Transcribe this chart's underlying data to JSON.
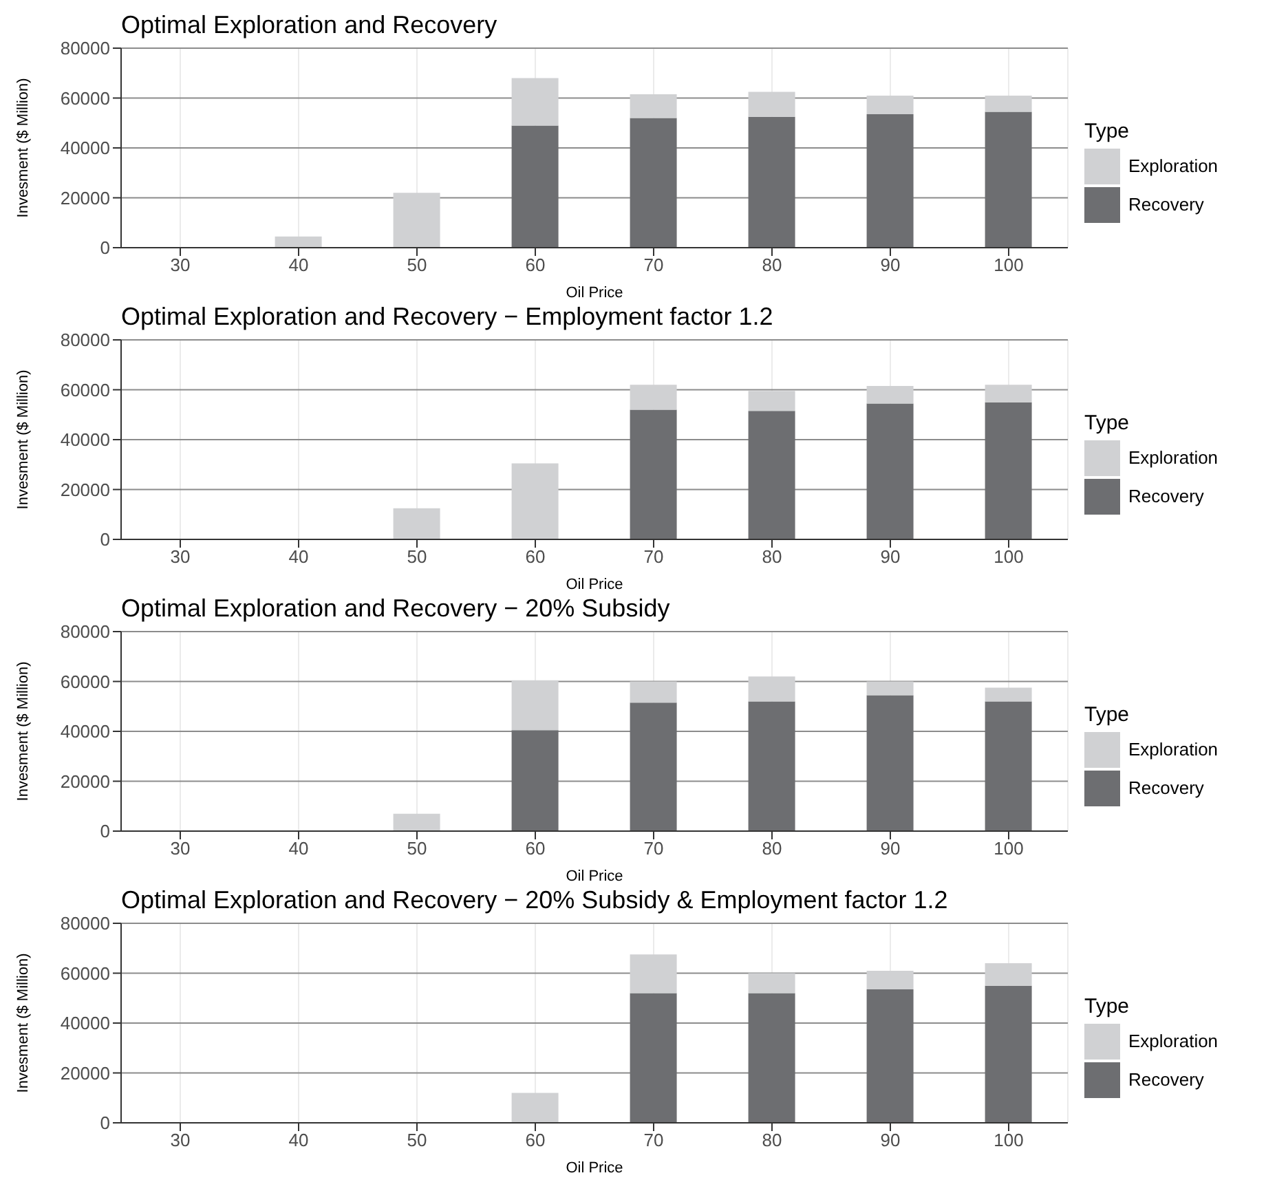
{
  "chart_data": [
    {
      "type": "bar",
      "title": "Optimal Exploration and Recovery",
      "xlabel": "Oil Price",
      "ylabel": "Invesment ($ Million)",
      "legend_title": "Type",
      "categories": [
        "30",
        "40",
        "50",
        "60",
        "70",
        "80",
        "90",
        "100"
      ],
      "stacked": true,
      "series": [
        {
          "name": "Recovery",
          "color": "#6d6e71",
          "values": [
            0,
            0,
            0,
            49000,
            52000,
            52500,
            53500,
            54500
          ]
        },
        {
          "name": "Exploration",
          "color": "#d0d1d3",
          "values": [
            0,
            4500,
            22000,
            19000,
            9500,
            10000,
            7500,
            6500
          ]
        }
      ],
      "ylim": [
        0,
        80000
      ],
      "yticks": [
        0,
        20000,
        40000,
        60000,
        80000
      ],
      "grid": true,
      "legend": "right"
    },
    {
      "type": "bar",
      "title": "Optimal Exploration and Recovery − Employment factor 1.2",
      "xlabel": "Oil Price",
      "ylabel": "Invesment ($ Million)",
      "legend_title": "Type",
      "categories": [
        "30",
        "40",
        "50",
        "60",
        "70",
        "80",
        "90",
        "100"
      ],
      "stacked": true,
      "series": [
        {
          "name": "Recovery",
          "color": "#6d6e71",
          "values": [
            0,
            0,
            0,
            0,
            52000,
            51500,
            54500,
            55000
          ]
        },
        {
          "name": "Exploration",
          "color": "#d0d1d3",
          "values": [
            0,
            0,
            12500,
            30500,
            10000,
            8000,
            7000,
            7000
          ]
        }
      ],
      "ylim": [
        0,
        80000
      ],
      "yticks": [
        0,
        20000,
        40000,
        60000,
        80000
      ],
      "grid": true,
      "legend": "right"
    },
    {
      "type": "bar",
      "title": "Optimal Exploration and Recovery − 20% Subsidy",
      "xlabel": "Oil Price",
      "ylabel": "Invesment ($ Million)",
      "legend_title": "Type",
      "categories": [
        "30",
        "40",
        "50",
        "60",
        "70",
        "80",
        "90",
        "100"
      ],
      "stacked": true,
      "series": [
        {
          "name": "Recovery",
          "color": "#6d6e71",
          "values": [
            0,
            0,
            0,
            40500,
            51500,
            52000,
            54500,
            52000
          ]
        },
        {
          "name": "Exploration",
          "color": "#d0d1d3",
          "values": [
            0,
            0,
            7000,
            20000,
            8500,
            10000,
            5500,
            5500
          ]
        }
      ],
      "ylim": [
        0,
        80000
      ],
      "yticks": [
        0,
        20000,
        40000,
        60000,
        80000
      ],
      "grid": true,
      "legend": "right"
    },
    {
      "type": "bar",
      "title": "Optimal Exploration and Recovery − 20% Subsidy & Employment factor 1.2",
      "xlabel": "Oil Price",
      "ylabel": "Invesment ($ Million)",
      "legend_title": "Type",
      "categories": [
        "30",
        "40",
        "50",
        "60",
        "70",
        "80",
        "90",
        "100"
      ],
      "stacked": true,
      "series": [
        {
          "name": "Recovery",
          "color": "#6d6e71",
          "values": [
            0,
            0,
            0,
            0,
            52000,
            52000,
            53500,
            55000
          ]
        },
        {
          "name": "Exploration",
          "color": "#d0d1d3",
          "values": [
            0,
            0,
            0,
            12000,
            15500,
            8000,
            7500,
            9000
          ]
        }
      ],
      "ylim": [
        0,
        80000
      ],
      "yticks": [
        0,
        20000,
        40000,
        60000,
        80000
      ],
      "grid": true,
      "legend": "right"
    }
  ]
}
